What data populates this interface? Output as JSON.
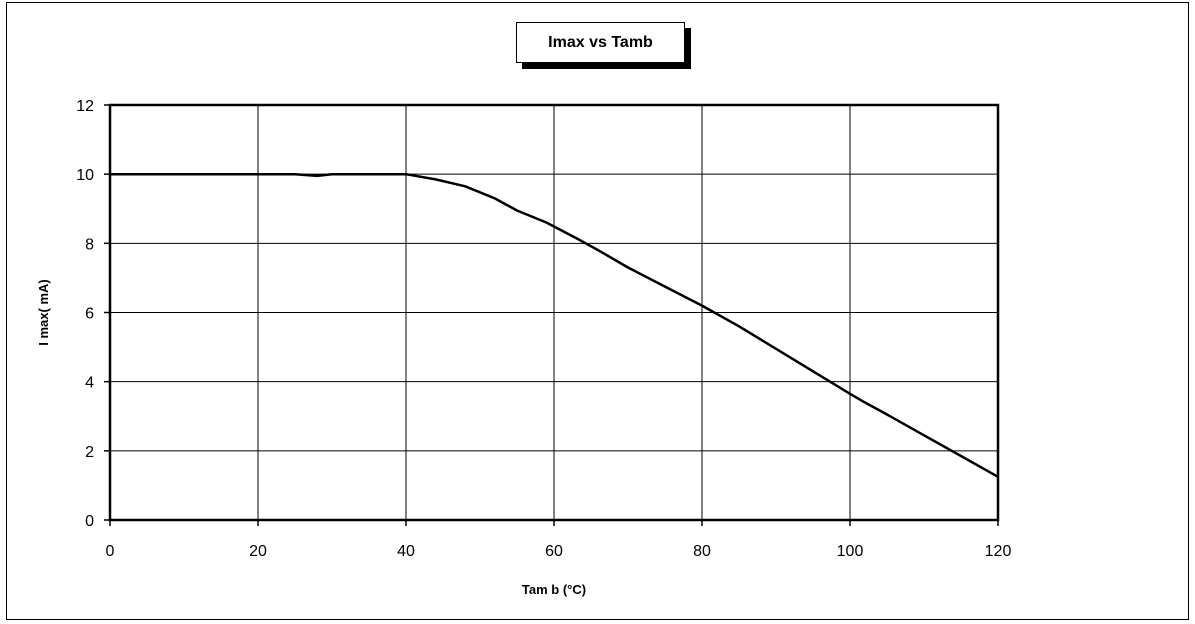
{
  "chart_data": {
    "type": "line",
    "title": "Imax vs Tamb",
    "xlabel": "Tam b (°C)",
    "ylabel": "I max( mA)",
    "xlim": [
      0,
      120
    ],
    "ylim": [
      0,
      12
    ],
    "x_ticks": [
      0,
      20,
      40,
      60,
      80,
      100,
      120
    ],
    "y_ticks": [
      0,
      2,
      4,
      6,
      8,
      10,
      12
    ],
    "x_tick_labels": [
      "0",
      "20",
      "40",
      "60",
      "80",
      "100",
      "120"
    ],
    "y_tick_labels": [
      "0",
      "2",
      "4",
      "6",
      "8",
      "10",
      "12"
    ],
    "grid": true,
    "legend": "none",
    "series": [
      {
        "color": "#000000",
        "x": [
          0,
          10,
          20,
          25,
          28,
          30,
          35,
          40,
          44,
          48,
          52,
          55,
          59,
          63,
          66,
          70,
          75,
          80,
          85,
          90,
          95,
          100,
          102,
          105,
          110,
          115,
          120
        ],
        "y": [
          10,
          10,
          10,
          10,
          9.95,
          10,
          10,
          10,
          9.85,
          9.65,
          9.3,
          8.95,
          8.6,
          8.15,
          7.8,
          7.3,
          6.75,
          6.2,
          5.6,
          4.95,
          4.3,
          3.65,
          3.4,
          3.05,
          2.45,
          1.85,
          1.25
        ]
      }
    ]
  }
}
